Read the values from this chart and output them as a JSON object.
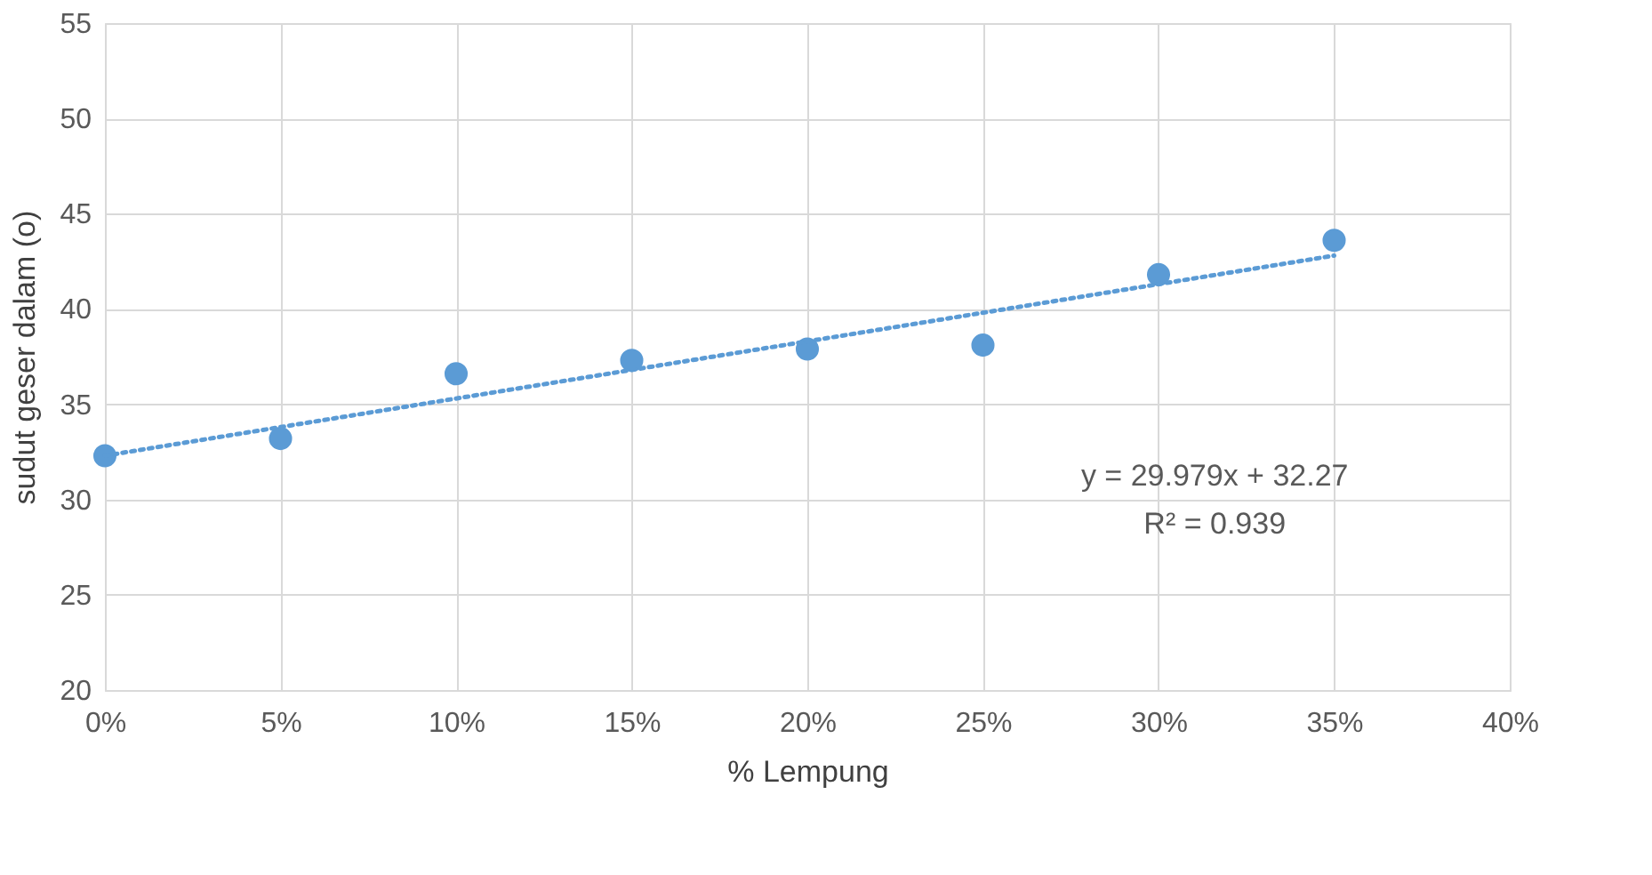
{
  "chart_data": {
    "type": "scatter",
    "xlabel": "% Lempung",
    "ylabel": "sudut geser dalam (o)",
    "x": [
      0,
      0.05,
      0.1,
      0.15,
      0.2,
      0.25,
      0.3,
      0.35
    ],
    "series": [
      {
        "color": "#5b9bd5",
        "marker": "circle",
        "values": [
          32.3,
          33.2,
          36.6,
          37.3,
          37.9,
          38.1,
          41.8,
          43.6
        ]
      },
      {
        "type": "line",
        "color": "#5b9bd5",
        "line_style": "dotted",
        "marker": "none",
        "x": [
          0,
          0.35
        ],
        "values": [
          32.3,
          42.8
        ]
      }
    ],
    "annotations": [
      "y = 29.979x + 32.27",
      "R² = 0.939"
    ],
    "xlim": [
      0,
      0.4
    ],
    "xticks": [
      {
        "value": 0,
        "label": "0%"
      },
      {
        "value": 0.05,
        "label": "5%"
      },
      {
        "value": 0.1,
        "label": "10%"
      },
      {
        "value": 0.15,
        "label": "15%"
      },
      {
        "value": 0.2,
        "label": "20%"
      },
      {
        "value": 0.25,
        "label": "25%"
      },
      {
        "value": 0.3,
        "label": "30%"
      },
      {
        "value": 0.35,
        "label": "35%"
      },
      {
        "value": 0.4,
        "label": "40%"
      }
    ],
    "ylim": [
      20,
      55
    ],
    "yticks": [
      20,
      25,
      30,
      35,
      40,
      45,
      50,
      55
    ],
    "grid": true
  }
}
